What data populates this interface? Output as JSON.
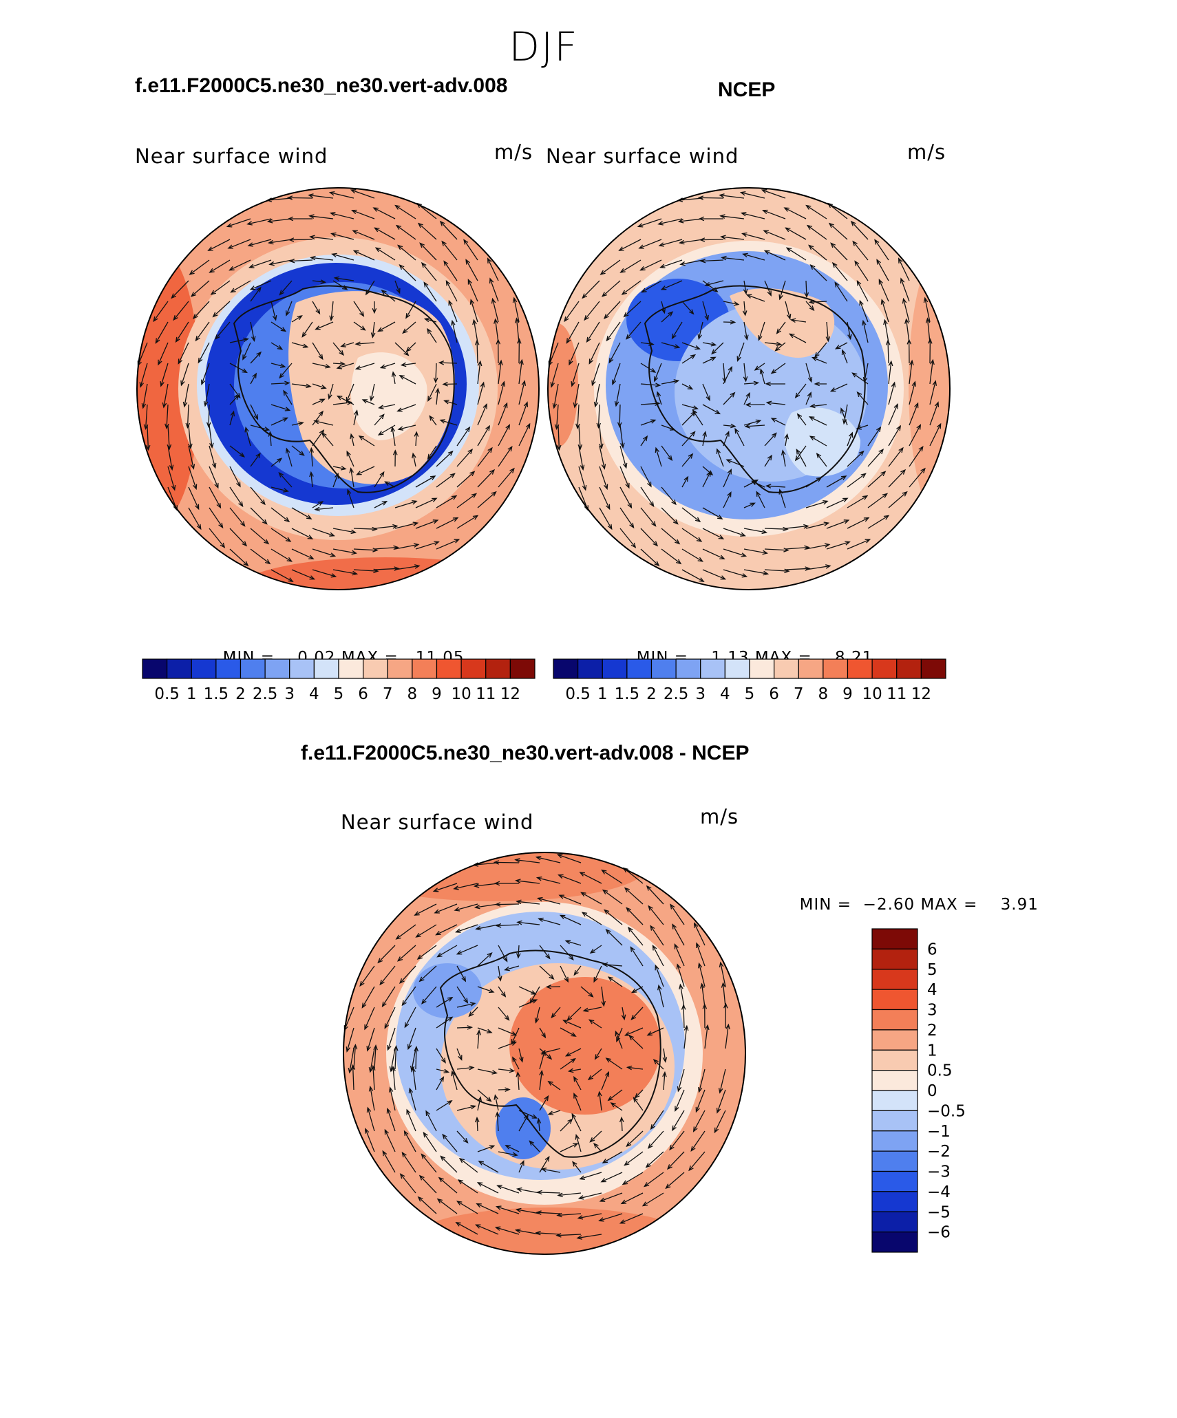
{
  "figure": {
    "title": "DJF"
  },
  "panels": [
    {
      "title": "f.e11.F2000C5.ne30_ne30.vert-adv.008",
      "left_label": "Near surface wind",
      "right_label": "m/s",
      "min_label": "MIN =",
      "min_value": "0.02",
      "max_label": "MAX =",
      "max_value": "11.05"
    },
    {
      "title": "NCEP",
      "left_label": "Near surface wind",
      "right_label": "m/s",
      "min_label": "MIN =",
      "min_value": "1.13",
      "max_label": "MAX =",
      "max_value": "8.21"
    },
    {
      "title": "f.e11.F2000C5.ne30_ne30.vert-adv.008 - NCEP",
      "left_label": "Near surface wind",
      "right_label": "m/s",
      "min_label": "MIN =",
      "min_value": "−2.60",
      "max_label": "MAX =",
      "max_value": "3.91"
    }
  ],
  "colorbars": {
    "wind": {
      "levels": [
        "0.5",
        "1",
        "1.5",
        "2",
        "2.5",
        "3",
        "4",
        "5",
        "6",
        "7",
        "8",
        "9",
        "10",
        "11",
        "12"
      ],
      "colors": [
        "#08066d",
        "#0c1fa8",
        "#1538d1",
        "#2a5ae8",
        "#4f7fee",
        "#7ea3f3",
        "#a8c2f6",
        "#d3e3f9",
        "#fbe9dc",
        "#f8cbb1",
        "#f6a684",
        "#f37f58",
        "#ef5630",
        "#d8381c",
        "#b3220f",
        "#7d0a06"
      ]
    },
    "diff": {
      "levels": [
        "6",
        "5",
        "4",
        "3",
        "2",
        "1",
        "0.5",
        "0",
        "−0.5",
        "−1",
        "−2",
        "−3",
        "−4",
        "−5",
        "−6"
      ],
      "colors": [
        "#7d0a06",
        "#b3220f",
        "#d8381c",
        "#ef5630",
        "#f37f58",
        "#f6a684",
        "#f8cbb1",
        "#fbe9dc",
        "#d3e3f9",
        "#a8c2f6",
        "#7ea3f3",
        "#4f7fee",
        "#2a5ae8",
        "#1538d1",
        "#0c1fa8",
        "#08066d"
      ]
    }
  }
}
